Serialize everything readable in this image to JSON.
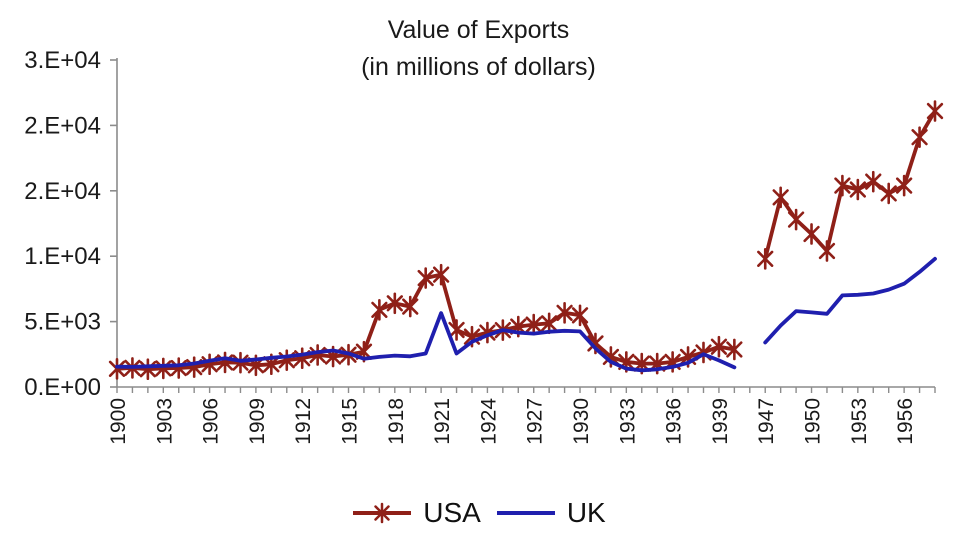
{
  "title": {
    "line1": "Value of Exports",
    "line2": "(in millions of dollars)"
  },
  "legend": [
    {
      "label": "USA",
      "color": "#8f2018",
      "marker": "star"
    },
    {
      "label": "UK",
      "color": "#1f1fae",
      "marker": "none"
    }
  ],
  "colors": {
    "axis": "#8c8c8c",
    "text": "#1a1a1a"
  },
  "chart_data": {
    "type": "line",
    "title": "Value of Exports",
    "subtitle": "(in millions of dollars)",
    "grid": false,
    "legend_position": "bottom",
    "x_axis": {
      "label_every": 3,
      "note": "years 1941-1945 omitted from axis"
    },
    "y_axis": {
      "range": [
        0,
        25000
      ],
      "tick_values": [
        0,
        5000,
        10000,
        15000,
        20000,
        25000
      ],
      "tick_labels": [
        "0.E+00",
        "5.E+03",
        "1.E+04",
        "2.E+04",
        "2.E+04",
        "3.E+04"
      ]
    },
    "categories": [
      "1900",
      "1901",
      "1902",
      "1903",
      "1904",
      "1905",
      "1906",
      "1907",
      "1908",
      "1909",
      "1910",
      "1911",
      "1912",
      "1913",
      "1914",
      "1915",
      "1916",
      "1917",
      "1918",
      "1919",
      "1920",
      "1921",
      "1922",
      "1923",
      "1924",
      "1925",
      "1926",
      "1927",
      "1928",
      "1929",
      "1930",
      "1931",
      "1932",
      "1933",
      "1934",
      "1935",
      "1936",
      "1937",
      "1938",
      "1939",
      "1940",
      "1946",
      "1947",
      "1948",
      "1949",
      "1950",
      "1951",
      "1952",
      "1953",
      "1954",
      "1955",
      "1956",
      "1957",
      "1958"
    ],
    "series": [
      {
        "name": "USA",
        "color": "#8f2018",
        "marker": "star",
        "values": [
          1390,
          1460,
          1360,
          1420,
          1450,
          1520,
          1740,
          1880,
          1860,
          1660,
          1740,
          2050,
          2200,
          2450,
          2330,
          2470,
          2700,
          5900,
          6400,
          6150,
          8330,
          8590,
          4360,
          3850,
          4160,
          4350,
          4620,
          4770,
          4870,
          5670,
          5480,
          3330,
          2300,
          1920,
          1790,
          1790,
          1920,
          2300,
          2640,
          3080,
          2870,
          null,
          9800,
          14500,
          12800,
          11700,
          10400,
          15400,
          15100,
          15700,
          14800,
          15400,
          19100,
          21100
        ]
      },
      {
        "name": "UK",
        "color": "#1f1fae",
        "marker": "none",
        "values": [
          1560,
          1540,
          1580,
          1620,
          1660,
          1800,
          2000,
          2200,
          2000,
          2100,
          2230,
          2330,
          2480,
          2670,
          2790,
          2560,
          2160,
          2300,
          2400,
          2350,
          2560,
          5650,
          2560,
          3460,
          3950,
          4350,
          4160,
          4080,
          4230,
          4300,
          4250,
          2950,
          1920,
          1410,
          1280,
          1350,
          1540,
          1850,
          2510,
          2030,
          1500,
          null,
          3400,
          4700,
          5800,
          5700,
          5600,
          7000,
          7050,
          7150,
          7450,
          7900,
          8800,
          9800
        ]
      }
    ]
  }
}
